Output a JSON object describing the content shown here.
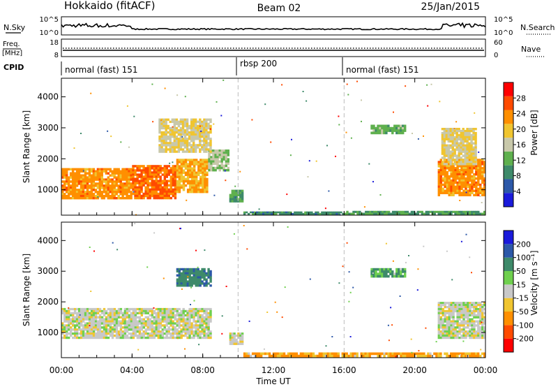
{
  "header": {
    "station": "Hokkaido (fitACF)",
    "beam": "Beam 02",
    "date": "25/Jan/2015"
  },
  "noise_panel": {
    "left_label": "N.Sky",
    "left_ticks": [
      "10^5",
      "10^0"
    ],
    "right_label": "N.Search",
    "right_ticks": [
      "10^5",
      "10^0"
    ]
  },
  "freq_panel": {
    "left_label_1": "Freq.",
    "left_label_2": "[MHz]",
    "left_ticks": [
      "18",
      "8"
    ],
    "right_label": "Nave",
    "right_ticks": [
      "60",
      "0"
    ]
  },
  "cpid_panel": {
    "label": "CPID",
    "segments": [
      {
        "label": "normal (fast) 151",
        "start_hour": 0
      },
      {
        "label": "rbsp 200",
        "start_hour": 10
      },
      {
        "label": "normal (fast) 151",
        "start_hour": 16
      }
    ]
  },
  "colors": {
    "power": [
      "#1a1adb",
      "#2c58a8",
      "#3e8a6a",
      "#5fb04e",
      "#c8c8aa",
      "#f0c530",
      "#ff8f00",
      "#ff4a00",
      "#ff0000"
    ],
    "velocity": [
      "#ff0000",
      "#ff4a00",
      "#ff8f00",
      "#f0c530",
      "#c8c8c8",
      "#6fd04e",
      "#3e8a6a",
      "#2c58a8",
      "#1a1adb"
    ]
  },
  "chart_data": [
    {
      "type": "heatmap",
      "name": "power",
      "ylabel": "Slant Range [km]",
      "ylim": [
        180,
        4600
      ],
      "yticks": [
        1000,
        2000,
        3000,
        4000
      ],
      "xlim": [
        0,
        24
      ],
      "colorbar_label": "Power [dB]",
      "colorbar_ticks": [
        "4",
        "8",
        "12",
        "16",
        "20",
        "24",
        "28"
      ],
      "regions": [
        {
          "x": [
            0,
            4
          ],
          "range": [
            700,
            1700
          ],
          "value": 24
        },
        {
          "x": [
            4,
            6.5
          ],
          "range": [
            700,
            1800
          ],
          "value": 26
        },
        {
          "x": [
            6.5,
            8.3
          ],
          "range": [
            900,
            2000
          ],
          "value": 22
        },
        {
          "x": [
            8.3,
            9.5
          ],
          "range": [
            1600,
            2300
          ],
          "value": 14
        },
        {
          "x": [
            5.5,
            8.5
          ],
          "range": [
            2200,
            3300
          ],
          "value": 18
        },
        {
          "x": [
            9.5,
            10.3
          ],
          "range": [
            600,
            1000
          ],
          "value": 10
        },
        {
          "x": [
            10.3,
            16
          ],
          "range": [
            200,
            300
          ],
          "value": 8
        },
        {
          "x": [
            16,
            24
          ],
          "range": [
            200,
            320
          ],
          "value": 10
        },
        {
          "x": [
            17.5,
            19.5
          ],
          "range": [
            2800,
            3100
          ],
          "value": 12
        },
        {
          "x": [
            21.3,
            24
          ],
          "range": [
            800,
            2000
          ],
          "value": 24
        },
        {
          "x": [
            21.5,
            23.5
          ],
          "range": [
            1800,
            3000
          ],
          "value": 18
        }
      ]
    },
    {
      "type": "heatmap",
      "name": "velocity",
      "ylabel": "Slant Range [km]",
      "xlabel": "Time UT",
      "ylim": [
        180,
        4600
      ],
      "yticks": [
        1000,
        2000,
        3000,
        4000
      ],
      "xlim": [
        0,
        24
      ],
      "xtick_labels": [
        "00:00",
        "04:00",
        "08:00",
        "12:00",
        "16:00",
        "20:00",
        "00:00"
      ],
      "colorbar_label": "Velocity [m s⁻¹]",
      "colorbar_ticks": [
        "-200",
        "-100",
        "-50",
        "-15",
        "15",
        "50",
        "100",
        "200"
      ],
      "regions": [
        {
          "x": [
            0,
            8.5
          ],
          "range": [
            800,
            1800
          ],
          "value": 0
        },
        {
          "x": [
            6.5,
            8.5
          ],
          "range": [
            2500,
            3100
          ],
          "value": 60
        },
        {
          "x": [
            9.5,
            10.3
          ],
          "range": [
            600,
            1000
          ],
          "value": 0
        },
        {
          "x": [
            10.3,
            24
          ],
          "range": [
            200,
            350
          ],
          "value": -40
        },
        {
          "x": [
            17.5,
            19.5
          ],
          "range": [
            2800,
            3100
          ],
          "value": 40
        },
        {
          "x": [
            21.3,
            24
          ],
          "range": [
            800,
            2000
          ],
          "value": 0
        }
      ]
    }
  ]
}
